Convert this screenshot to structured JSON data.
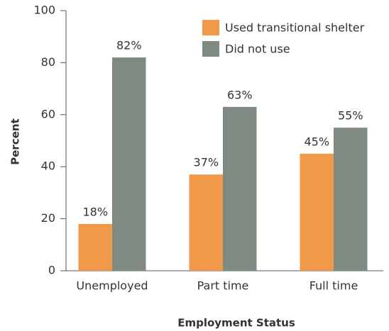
{
  "chart_data": {
    "type": "bar",
    "x_label": "Employment Status",
    "y_label": "Percent",
    "categories": [
      "Unemployed",
      "Part time",
      "Full time"
    ],
    "series": [
      {
        "name": "Used transitional shelter",
        "color": "#f0994a",
        "values": [
          18,
          37,
          45
        ],
        "value_labels": [
          "18%",
          "37%",
          "45%"
        ]
      },
      {
        "name": "Did not use",
        "color": "#7f8b82",
        "values": [
          82,
          63,
          55
        ],
        "value_labels": [
          "82%",
          "63%",
          "55%"
        ]
      }
    ],
    "ylim": [
      0,
      100
    ],
    "yticks": [
      0,
      20,
      40,
      60,
      80,
      100
    ],
    "grid": false,
    "legend": "upper right"
  }
}
